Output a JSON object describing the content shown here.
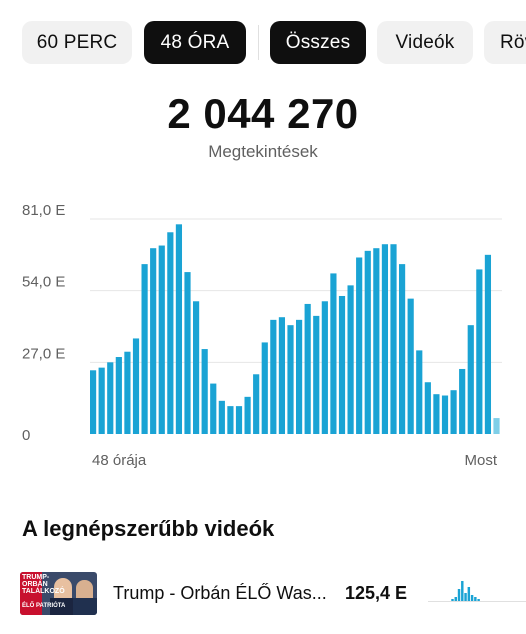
{
  "filters": {
    "time": [
      {
        "label": "60 PERC",
        "active": false
      },
      {
        "label": "48 ÓRA",
        "active": true
      }
    ],
    "type": [
      {
        "label": "Összes",
        "active": true
      },
      {
        "label": "Videók",
        "active": false
      },
      {
        "label": "Röv",
        "active": false
      }
    ]
  },
  "summary": {
    "total": "2 044 270",
    "label": "Megtekintések"
  },
  "colors": {
    "bar": "#1aa3d4",
    "bar_current": "#7fcfe8",
    "grid": "#e6e6e6"
  },
  "chart_data": {
    "type": "bar",
    "title": "",
    "xlabel": "",
    "ylabel": "",
    "ylim": [
      0,
      81000
    ],
    "y_ticks": [
      {
        "value": 0,
        "label": "0"
      },
      {
        "value": 27000,
        "label": "27,0 E"
      },
      {
        "value": 54000,
        "label": "54,0 E"
      },
      {
        "value": 81000,
        "label": "81,0 E"
      }
    ],
    "x_start_label": "48 órája",
    "x_end_label": "Most",
    "values": [
      24000,
      25000,
      27000,
      29000,
      31000,
      36000,
      64000,
      70000,
      71000,
      76000,
      79000,
      61000,
      50000,
      32000,
      19000,
      12500,
      10500,
      10500,
      14000,
      22500,
      34500,
      43000,
      44000,
      41000,
      43000,
      49000,
      44500,
      50000,
      60500,
      52000,
      56000,
      66500,
      69000,
      70000,
      71500,
      71500,
      64000,
      51000,
      31500,
      19500,
      15000,
      14500,
      16500,
      24500,
      41000,
      62000,
      67500,
      6000
    ],
    "last_is_current": true
  },
  "top_videos": {
    "title": "A legnépszerűbb videók",
    "items": [
      {
        "title": "Trump - Orbán ÉLŐ Was...",
        "views": "125,4 E",
        "thumb_text_1": "TRUMP-\nORBÁN\nTALÁLKOZÓ",
        "thumb_text_2": "ÉLŐ PATRIÓTA",
        "spark_values": [
          0,
          0,
          0,
          0,
          0,
          0,
          0,
          1,
          2,
          6,
          10,
          4,
          7,
          3,
          2,
          1,
          0,
          0,
          0,
          0,
          0,
          0,
          0,
          0,
          0,
          0,
          0,
          0,
          0,
          0
        ]
      }
    ]
  }
}
